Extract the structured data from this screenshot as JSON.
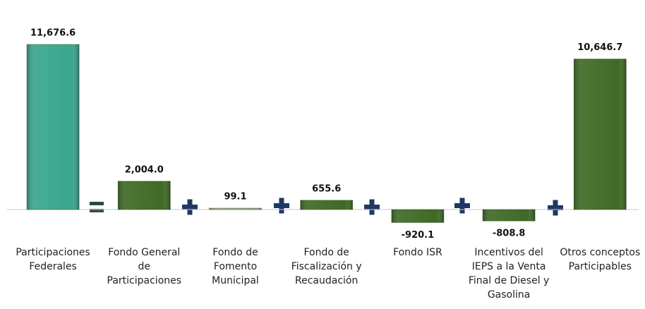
{
  "chart_data": {
    "type": "bar",
    "categories": [
      "Participaciones\nFederales",
      "Fondo General\nde\nParticipaciones",
      "Fondo de\nFomento\nMunicipal",
      "Fondo de\nFiscalización y\nRecaudación",
      "Fondo ISR",
      "Incentivos del\nIEPS a la Venta\nFinal de Diesel y\nGasolina",
      "Otros conceptos\nParticipables"
    ],
    "values": [
      11676.6,
      2004.0,
      99.1,
      655.6,
      -920.1,
      -808.8,
      10646.7
    ],
    "value_labels": [
      "11,676.6",
      "2,004.0",
      "99.1",
      "655.6",
      "-920.1",
      "-808.8",
      "10,646.7"
    ],
    "colors": [
      "#3aa68d",
      "#3f6a25",
      "#9aaa90",
      "#3f6a25",
      "#3f6a25",
      "#3f6a25",
      "#3f6a25"
    ],
    "ylim": [
      -2000,
      12000
    ]
  }
}
